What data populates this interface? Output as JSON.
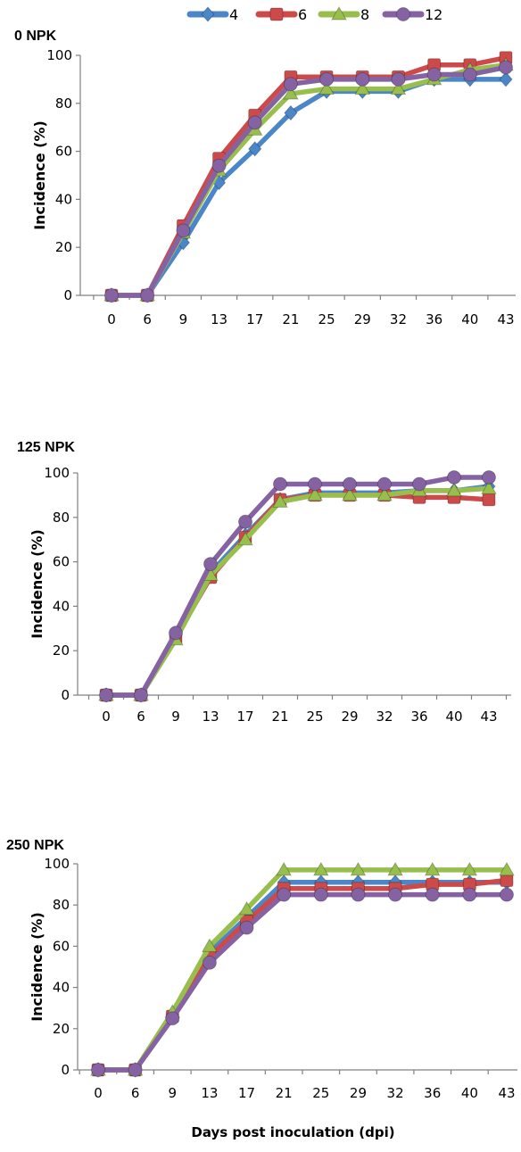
{
  "chart_data": [
    {
      "type": "line",
      "title": "0 NPK",
      "ylabel": "Incidence (%)",
      "xlabel": "",
      "categories": [
        "0",
        "6",
        "9",
        "13",
        "17",
        "21",
        "25",
        "29",
        "32",
        "36",
        "40",
        "43"
      ],
      "ylim": [
        0,
        100
      ],
      "yticks": [
        0,
        20,
        40,
        60,
        80,
        100
      ],
      "grid": false,
      "series": [
        {
          "name": "4",
          "values": [
            0,
            0,
            22,
            47,
            61,
            76,
            85,
            85,
            85,
            90,
            90,
            90
          ]
        },
        {
          "name": "6",
          "values": [
            0,
            0,
            29,
            57,
            75,
            91,
            91,
            91,
            91,
            96,
            96,
            99
          ]
        },
        {
          "name": "8",
          "values": [
            0,
            0,
            26,
            52,
            69,
            84,
            86,
            86,
            86,
            90,
            94,
            96
          ]
        },
        {
          "name": "12",
          "values": [
            0,
            0,
            27,
            54,
            72,
            88,
            90,
            90,
            90,
            92,
            92,
            95
          ]
        }
      ]
    },
    {
      "type": "line",
      "title": "125 NPK",
      "ylabel": "Incidence (%)",
      "xlabel": "",
      "categories": [
        "0",
        "6",
        "9",
        "13",
        "17",
        "21",
        "25",
        "29",
        "32",
        "36",
        "40",
        "43"
      ],
      "ylim": [
        0,
        100
      ],
      "yticks": [
        0,
        20,
        40,
        60,
        80,
        100
      ],
      "grid": false,
      "series": [
        {
          "name": "4",
          "values": [
            0,
            0,
            27,
            55,
            72,
            88,
            91,
            91,
            91,
            92,
            92,
            94
          ]
        },
        {
          "name": "6",
          "values": [
            0,
            0,
            26,
            53,
            71,
            88,
            90,
            90,
            90,
            89,
            89,
            88
          ]
        },
        {
          "name": "8",
          "values": [
            0,
            0,
            25,
            54,
            70,
            87,
            90,
            90,
            90,
            92,
            92,
            93
          ]
        },
        {
          "name": "12",
          "values": [
            0,
            0,
            28,
            59,
            78,
            95,
            95,
            95,
            95,
            95,
            98,
            98
          ]
        }
      ]
    },
    {
      "type": "line",
      "title": "250 NPK",
      "ylabel": "Incidence (%)",
      "xlabel": "Days post inoculation (dpi)",
      "categories": [
        "0",
        "6",
        "9",
        "13",
        "17",
        "21",
        "25",
        "29",
        "32",
        "36",
        "40",
        "43"
      ],
      "ylim": [
        0,
        100
      ],
      "yticks": [
        0,
        20,
        40,
        60,
        80,
        100
      ],
      "grid": false,
      "series": [
        {
          "name": "4",
          "values": [
            0,
            0,
            27,
            57,
            74,
            91,
            91,
            91,
            91,
            91,
            91,
            91
          ]
        },
        {
          "name": "6",
          "values": [
            0,
            0,
            26,
            55,
            72,
            88,
            88,
            88,
            88,
            90,
            90,
            92
          ]
        },
        {
          "name": "8",
          "values": [
            0,
            0,
            28,
            60,
            78,
            97,
            97,
            97,
            97,
            97,
            97,
            97
          ]
        },
        {
          "name": "12",
          "values": [
            0,
            0,
            25,
            52,
            69,
            85,
            85,
            85,
            85,
            85,
            85,
            85
          ]
        }
      ]
    }
  ],
  "legend": {
    "placement": "top",
    "entries": [
      {
        "label": "4",
        "color": "#4a86c8",
        "marker": "diamond"
      },
      {
        "label": "6",
        "color": "#cc4b4a",
        "marker": "square"
      },
      {
        "label": "8",
        "color": "#98bf4d",
        "marker": "triangle"
      },
      {
        "label": "12",
        "color": "#8563a3",
        "marker": "circle"
      }
    ]
  }
}
